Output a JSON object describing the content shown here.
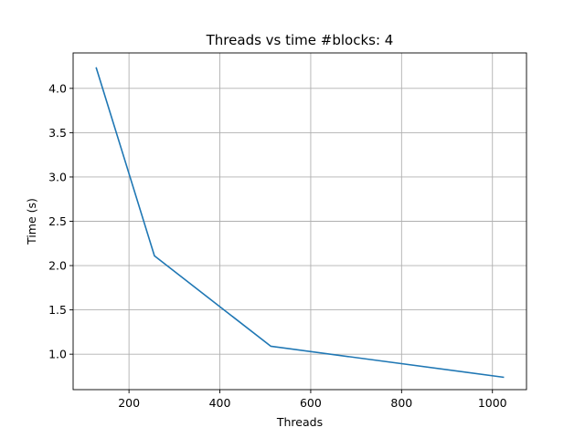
{
  "chart_data": {
    "type": "line",
    "title": "Threads vs time #blocks: 4",
    "xlabel": "Threads",
    "ylabel": "Time (s)",
    "xlim": [
      77,
      1075
    ],
    "ylim": [
      0.6,
      4.4
    ],
    "xticks": [
      200,
      400,
      600,
      800,
      1000
    ],
    "yticks": [
      1.0,
      1.5,
      2.0,
      2.5,
      3.0,
      3.5,
      4.0
    ],
    "xtick_labels": [
      "200",
      "400",
      "600",
      "800",
      "1000"
    ],
    "ytick_labels": [
      "1.0",
      "1.5",
      "2.0",
      "2.5",
      "3.0",
      "3.5",
      "4.0"
    ],
    "grid": true,
    "series": [
      {
        "color": "#1f77b4",
        "x": [
          128,
          256,
          512,
          1024
        ],
        "y": [
          4.23,
          2.11,
          1.09,
          0.74
        ]
      }
    ]
  }
}
